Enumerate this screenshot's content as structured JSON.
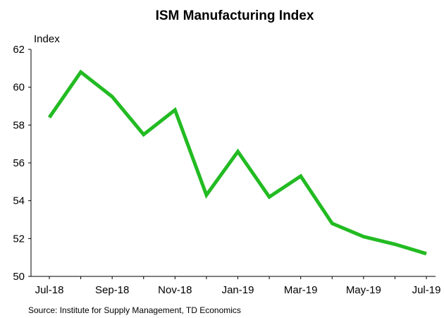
{
  "chart_data": {
    "type": "line",
    "title": "ISM Manufacturing Index",
    "ylabel": "Index",
    "xlabel": "",
    "source": "Source: Institute for Supply Management, TD Economics",
    "ylim": [
      50,
      62
    ],
    "yticks": [
      50,
      52,
      54,
      56,
      58,
      60,
      62
    ],
    "x_tick_labels": [
      "Jul-18",
      "Sep-18",
      "Nov-18",
      "Jan-19",
      "Mar-19",
      "May-19",
      "Jul-19"
    ],
    "x": [
      "Jul-18",
      "Aug-18",
      "Sep-18",
      "Oct-18",
      "Nov-18",
      "Dec-18",
      "Jan-19",
      "Feb-19",
      "Mar-19",
      "Apr-19",
      "May-19",
      "Jun-19",
      "Jul-19"
    ],
    "series": [
      {
        "values": [
          58.4,
          60.8,
          59.5,
          57.5,
          58.8,
          54.3,
          56.6,
          54.2,
          55.3,
          52.8,
          52.1,
          51.7,
          51.2
        ]
      }
    ],
    "grid": false,
    "line_color": "#22bb22"
  }
}
